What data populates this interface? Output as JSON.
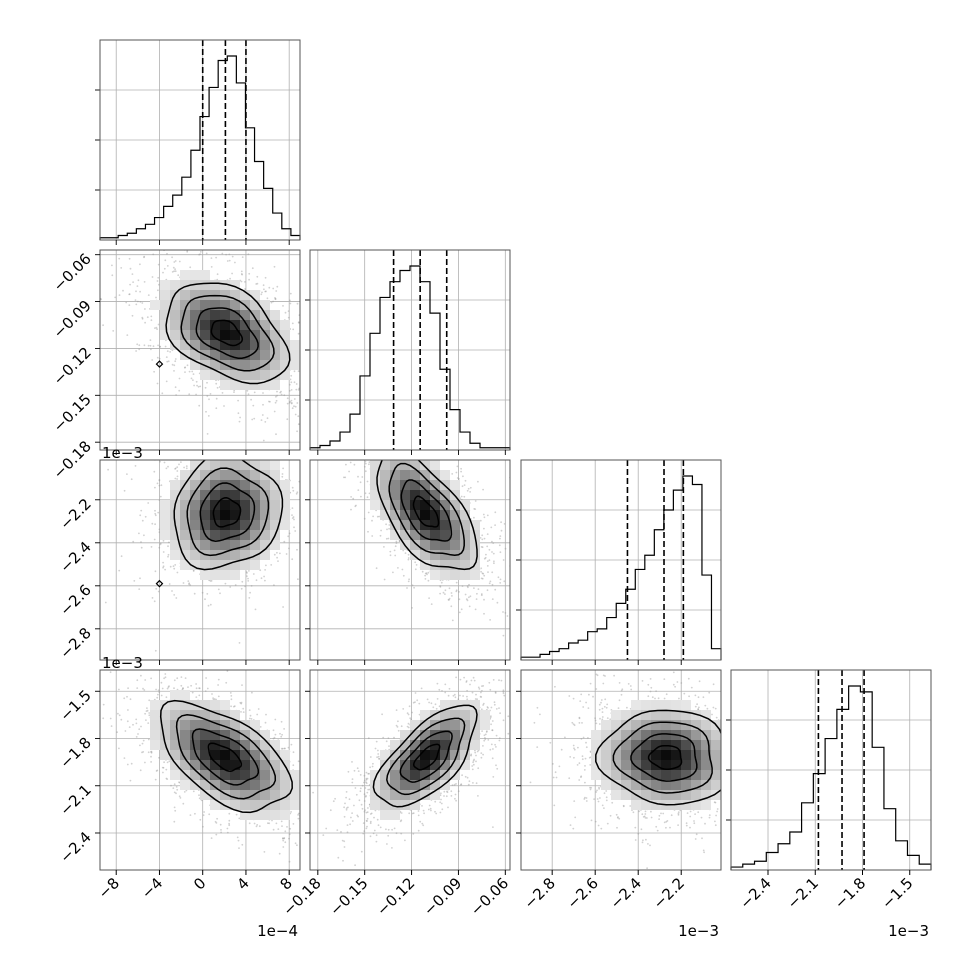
{
  "chart_data": {
    "type": "corner",
    "title": "",
    "parameters": [
      {
        "name": "",
        "range": [
          -0.00095,
          0.0009
        ],
        "ticks": [
          -0.0008,
          -0.0004,
          0.0,
          0.0004,
          0.0008
        ],
        "tick_labels": [
          "−8",
          "−4",
          "0",
          "4",
          "8"
        ],
        "offset_label": "1e−4",
        "quantiles": [
          0.0,
          0.00021,
          0.0004
        ],
        "hist": [
          1,
          1,
          2,
          3,
          5,
          7,
          10,
          15,
          20,
          28,
          40,
          55,
          68,
          80,
          82,
          70,
          50,
          35,
          23,
          12,
          5,
          2
        ]
      },
      {
        "name": "",
        "range": [
          -0.185,
          -0.057
        ],
        "ticks": [
          -0.18,
          -0.15,
          -0.12,
          -0.09,
          -0.06
        ],
        "tick_labels": [
          "−0.18",
          "−0.15",
          "−0.12",
          "−0.09",
          "−0.06"
        ],
        "offset_label": "",
        "quantiles": [
          -0.1315,
          -0.1145,
          -0.0975
        ],
        "hist": [
          1,
          2,
          4,
          8,
          16,
          33,
          52,
          68,
          75,
          80,
          82,
          75,
          61,
          36,
          18,
          8,
          3,
          1,
          1,
          1
        ]
      },
      {
        "name": "",
        "range": [
          -0.002945,
          -0.002015
        ],
        "ticks": [
          -0.0028,
          -0.0026,
          -0.0024,
          -0.0022
        ],
        "tick_labels": [
          "−2.8",
          "−2.6",
          "−2.4",
          "−2.2"
        ],
        "offset_label": "1e−3",
        "quantiles": [
          -0.00245,
          -0.00228,
          -0.00219
        ],
        "hist": [
          1,
          1,
          2,
          3,
          4,
          6,
          7,
          10,
          11,
          15,
          20,
          25,
          32,
          37,
          46,
          53,
          60,
          65,
          62,
          30,
          4
        ]
      },
      {
        "name": "",
        "range": [
          -0.002635,
          -0.001365
        ],
        "ticks": [
          -0.0024,
          -0.0021,
          -0.0018,
          -0.0015
        ],
        "tick_labels": [
          "−2.4",
          "−2.1",
          "−1.8",
          "−1.5"
        ],
        "offset_label": "1e−3",
        "quantiles": [
          -0.00208,
          -0.00193,
          -0.00179
        ],
        "hist": [
          1,
          2,
          3,
          6,
          9,
          13,
          23,
          33,
          45,
          55,
          63,
          61,
          42,
          21,
          10,
          5,
          2
        ]
      }
    ],
    "pairs": [
      {
        "x": 0,
        "y": 1,
        "center": [
          0.00022,
          -0.11
        ],
        "corr": 0.4,
        "sigma": [
          0.00028,
          0.016
        ],
        "scatter_spread": 2.6
      },
      {
        "x": 0,
        "y": 2,
        "center": [
          0.00022,
          -0.00226
        ],
        "corr": -0.1,
        "sigma": [
          0.00025,
          0.00013
        ],
        "scatter_spread": 2.4
      },
      {
        "x": 1,
        "y": 2,
        "center": [
          -0.111,
          -0.00226
        ],
        "corr": 0.6,
        "sigma": [
          0.016,
          0.00014
        ],
        "scatter_spread": 2.4
      },
      {
        "x": 0,
        "y": 3,
        "center": [
          0.0002,
          -0.00192
        ],
        "corr": 0.55,
        "sigma": [
          0.0003,
          0.00017
        ],
        "scatter_spread": 2.5
      },
      {
        "x": 1,
        "y": 3,
        "center": [
          -0.11,
          -0.00192
        ],
        "corr": -0.65,
        "sigma": [
          0.016,
          0.00016
        ],
        "scatter_spread": 2.5
      },
      {
        "x": 2,
        "y": 3,
        "center": [
          -0.00227,
          -0.00192
        ],
        "corr": 0.05,
        "sigma": [
          0.00015,
          0.00015
        ],
        "scatter_spread": 2.6
      }
    ],
    "outlier_markers": [
      {
        "x": 0,
        "y": 1,
        "point": [
          -0.0004,
          -0.13
        ]
      },
      {
        "x": 0,
        "y": 2,
        "point": [
          -0.0004,
          -0.00259
        ]
      }
    ],
    "grid": true,
    "colors": {
      "line": "#000000",
      "grid": "#b0b0b0",
      "scatter": "#9a9a9a"
    }
  }
}
